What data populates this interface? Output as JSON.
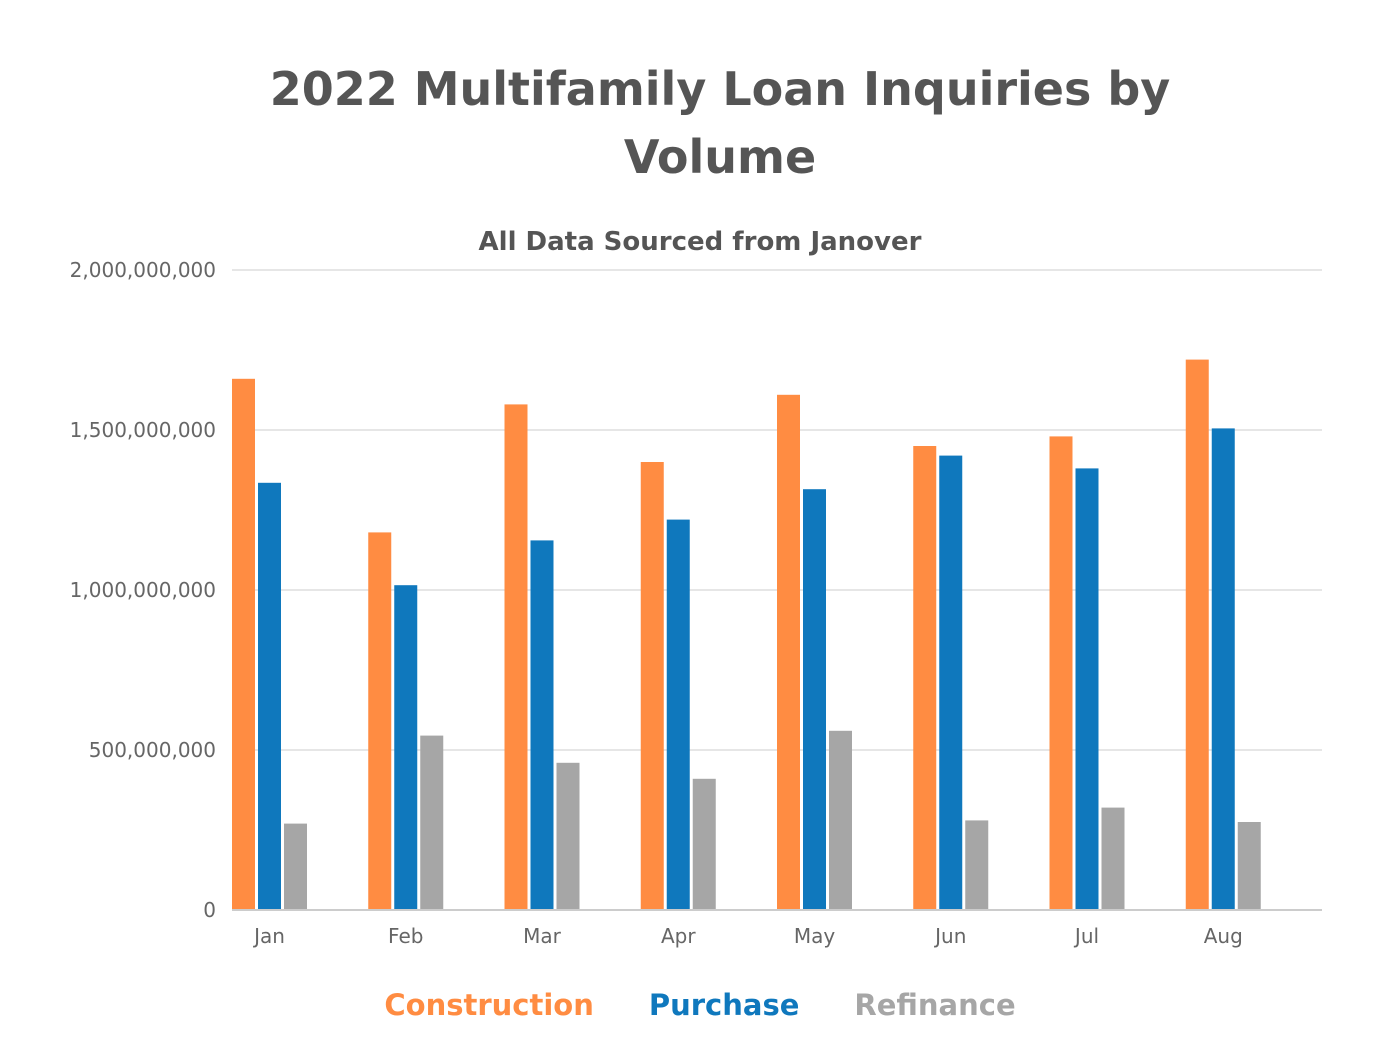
{
  "chart_data": {
    "type": "bar",
    "title": "2022 Multifamily Loan Inquiries by Volume",
    "subtitle": "All Data Sourced from Janover",
    "xlabel": "",
    "ylabel": "",
    "ylim": [
      0,
      2000000000
    ],
    "y_ticks": [
      "0",
      "500,000,000",
      "1,000,000,000",
      "1,500,000,000",
      "2,000,000,000"
    ],
    "y_tick_values": [
      0,
      500000000,
      1000000000,
      1500000000,
      2000000000
    ],
    "grid": "horizontal",
    "legend_position": "bottom",
    "categories": [
      "Jan",
      "Feb",
      "Mar",
      "Apr",
      "May",
      "Jun",
      "Jul",
      "Aug"
    ],
    "series": [
      {
        "name": "Construction",
        "color": "#ff8c42",
        "values": [
          1660000000,
          1180000000,
          1580000000,
          1400000000,
          1610000000,
          1450000000,
          1480000000,
          1720000000
        ]
      },
      {
        "name": "Purchase",
        "color": "#0f78bd",
        "values": [
          1335000000,
          1015000000,
          1155000000,
          1220000000,
          1315000000,
          1420000000,
          1380000000,
          1505000000
        ]
      },
      {
        "name": "Refinance",
        "color": "#a6a6a6",
        "values": [
          270000000,
          545000000,
          460000000,
          410000000,
          560000000,
          280000000,
          320000000,
          275000000
        ]
      }
    ]
  }
}
